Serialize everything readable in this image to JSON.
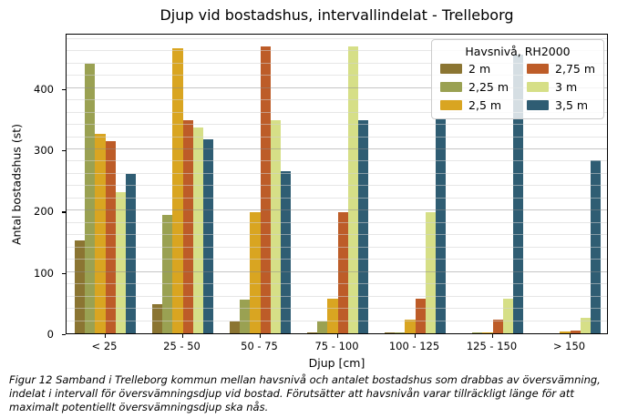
{
  "figure": {
    "caption": "Figur 12 Samband i Trelleborg kommun mellan havsnivå och antalet bostadshus som drabbas av översvämning, indelat i intervall för översvämningsdjup vid bostad. Förutsätter att havsnivån varar tillräckligt länge för att maximalt potentiellt översvämningsdjup ska nås."
  },
  "chart_data": {
    "type": "bar",
    "title": "Djup vid bostadshus, intervallindelat - Trelleborg",
    "xlabel": "Djup [cm]",
    "ylabel": "Antal bostadshus (st)",
    "legend_title": "Havsnivå, RH2000",
    "legend_position": "upper right",
    "grid": true,
    "categories": [
      "< 25",
      "25 - 50",
      "50 - 75",
      "75 - 100",
      "100 - 125",
      "125 - 150",
      "> 150"
    ],
    "series": [
      {
        "name": "2 m",
        "color": "#8b7532",
        "values": [
          152,
          48,
          20,
          1,
          2,
          0,
          0
        ]
      },
      {
        "name": "2,25 m",
        "color": "#9aa152",
        "values": [
          440,
          193,
          55,
          20,
          2,
          2,
          0
        ]
      },
      {
        "name": "2,5 m",
        "color": "#d9a521",
        "values": [
          325,
          465,
          198,
          57,
          23,
          2,
          3
        ]
      },
      {
        "name": "2,75 m",
        "color": "#bd5c28",
        "values": [
          313,
          348,
          468,
          198,
          57,
          22,
          5
        ]
      },
      {
        "name": "3 m",
        "color": "#d6df87",
        "values": [
          230,
          335,
          348,
          468,
          198,
          57,
          25
        ]
      },
      {
        "name": "3,5 m",
        "color": "#2f5d73",
        "values": [
          260,
          317,
          265,
          347,
          349,
          455,
          282
        ]
      }
    ],
    "ylim": [
      0,
      490
    ],
    "yticks": [
      0,
      100,
      200,
      300,
      400
    ],
    "minor_grid_step": 20
  }
}
